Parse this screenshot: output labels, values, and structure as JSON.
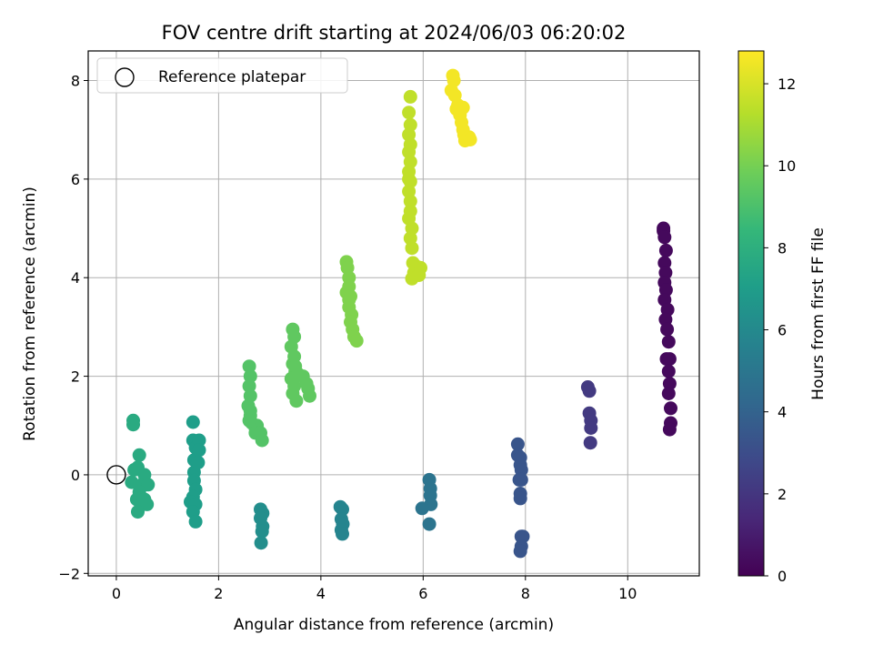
{
  "chart_data": {
    "type": "scatter",
    "title": "FOV centre drift starting at 2024/06/03 06:20:02",
    "xlabel": "Angular distance from reference (arcmin)",
    "ylabel": "Rotation from reference (arcmin)",
    "xlim": [
      -0.55,
      11.4
    ],
    "ylim": [
      -2.05,
      8.6
    ],
    "xticks": [
      0,
      2,
      4,
      6,
      8,
      10
    ],
    "yticks": [
      -2,
      0,
      2,
      4,
      6,
      8
    ],
    "grid": true,
    "legend": {
      "placement": "top-left",
      "entries": [
        "Reference platepar"
      ]
    },
    "reference_point": {
      "x": 0,
      "y": 0
    },
    "colorbar": {
      "label": "Hours from first FF file",
      "range": [
        0,
        12.8
      ],
      "ticks": [
        0,
        2,
        4,
        6,
        8,
        10,
        12
      ],
      "colormap": "viridis",
      "colors": [
        "#440154",
        "#482878",
        "#3e4989",
        "#31688e",
        "#26828e",
        "#1f9e89",
        "#35b779",
        "#6ece58",
        "#b5de2b",
        "#fde725"
      ]
    },
    "series": [
      {
        "hours": 0.3,
        "points": [
          [
            10.7,
            5.0
          ],
          [
            10.7,
            4.95
          ],
          [
            10.72,
            4.82
          ],
          [
            10.75,
            4.55
          ],
          [
            10.72,
            4.3
          ],
          [
            10.74,
            4.1
          ],
          [
            10.72,
            3.9
          ],
          [
            10.75,
            3.75
          ],
          [
            10.72,
            3.55
          ],
          [
            10.78,
            3.35
          ],
          [
            10.74,
            3.15
          ],
          [
            10.77,
            2.95
          ],
          [
            10.8,
            2.7
          ],
          [
            10.76,
            2.35
          ],
          [
            10.82,
            2.35
          ],
          [
            10.8,
            2.1
          ],
          [
            10.82,
            1.85
          ],
          [
            10.8,
            1.65
          ],
          [
            10.84,
            1.35
          ],
          [
            10.84,
            1.05
          ],
          [
            10.82,
            0.92
          ]
        ]
      },
      {
        "hours": 2.2,
        "points": [
          [
            9.22,
            1.78
          ],
          [
            9.25,
            1.7
          ],
          [
            9.25,
            1.25
          ],
          [
            9.28,
            1.1
          ],
          [
            9.28,
            0.95
          ],
          [
            9.27,
            0.65
          ]
        ]
      },
      {
        "hours": 3.4,
        "points": [
          [
            7.85,
            0.62
          ],
          [
            7.85,
            0.4
          ],
          [
            7.9,
            0.35
          ],
          [
            7.9,
            0.2
          ],
          [
            7.92,
            0.1
          ],
          [
            7.88,
            -0.1
          ],
          [
            7.92,
            -0.1
          ],
          [
            7.9,
            -0.38
          ],
          [
            7.9,
            -0.48
          ],
          [
            7.95,
            -1.25
          ],
          [
            7.92,
            -1.25
          ],
          [
            7.92,
            -1.45
          ],
          [
            7.9,
            -1.55
          ]
        ]
      },
      {
        "hours": 4.9,
        "points": [
          [
            6.12,
            -0.1
          ],
          [
            6.14,
            -0.28
          ],
          [
            6.14,
            -0.42
          ],
          [
            6.15,
            -0.6
          ],
          [
            5.98,
            -0.68
          ],
          [
            6.12,
            -1.0
          ]
        ]
      },
      {
        "hours": 5.8,
        "points": [
          [
            4.38,
            -0.65
          ],
          [
            4.42,
            -0.7
          ],
          [
            4.4,
            -0.9
          ],
          [
            4.43,
            -1.0
          ],
          [
            4.4,
            -1.12
          ],
          [
            4.42,
            -1.2
          ]
        ]
      },
      {
        "hours": 6.3,
        "points": [
          [
            2.82,
            -0.7
          ],
          [
            2.86,
            -0.78
          ],
          [
            2.82,
            -0.88
          ],
          [
            2.86,
            -1.05
          ],
          [
            2.85,
            -1.15
          ],
          [
            2.83,
            -1.38
          ]
        ]
      },
      {
        "hours": 7.1,
        "points": [
          [
            1.5,
            1.07
          ],
          [
            1.5,
            0.7
          ],
          [
            1.55,
            0.55
          ],
          [
            1.52,
            0.3
          ],
          [
            1.52,
            0.05
          ],
          [
            1.52,
            -0.12
          ],
          [
            1.55,
            -0.3
          ],
          [
            1.5,
            -0.45
          ],
          [
            1.45,
            -0.55
          ],
          [
            1.55,
            -0.6
          ],
          [
            1.5,
            -0.75
          ],
          [
            1.55,
            -0.95
          ],
          [
            1.62,
            0.7
          ],
          [
            1.62,
            0.5
          ],
          [
            1.6,
            0.25
          ]
        ]
      },
      {
        "hours": 7.8,
        "points": [
          [
            0.33,
            1.1
          ],
          [
            0.33,
            1.02
          ],
          [
            0.45,
            0.4
          ],
          [
            0.35,
            0.1
          ],
          [
            0.42,
            0.15
          ],
          [
            0.55,
            0.0
          ],
          [
            0.3,
            -0.15
          ],
          [
            0.5,
            -0.2
          ],
          [
            0.62,
            -0.2
          ],
          [
            0.45,
            -0.35
          ],
          [
            0.4,
            -0.5
          ],
          [
            0.55,
            -0.5
          ],
          [
            0.6,
            -0.6
          ],
          [
            0.48,
            -0.62
          ],
          [
            0.42,
            -0.75
          ]
        ]
      },
      {
        "hours": 9.3,
        "points": [
          [
            2.6,
            2.2
          ],
          [
            2.62,
            2.0
          ],
          [
            2.6,
            1.8
          ],
          [
            2.62,
            1.6
          ],
          [
            2.58,
            1.4
          ],
          [
            2.62,
            1.2
          ],
          [
            2.65,
            1.05
          ],
          [
            2.72,
            0.95
          ],
          [
            2.75,
            1.0
          ],
          [
            2.72,
            0.85
          ],
          [
            2.82,
            0.85
          ],
          [
            2.85,
            0.7
          ],
          [
            2.62,
            1.3
          ],
          [
            2.6,
            1.1
          ]
        ]
      },
      {
        "hours": 9.6,
        "points": [
          [
            3.45,
            2.95
          ],
          [
            3.48,
            2.8
          ],
          [
            3.42,
            2.6
          ],
          [
            3.48,
            2.4
          ],
          [
            3.45,
            2.25
          ],
          [
            3.5,
            2.1
          ],
          [
            3.42,
            1.95
          ],
          [
            3.48,
            1.8
          ],
          [
            3.45,
            1.65
          ],
          [
            3.52,
            1.5
          ],
          [
            3.65,
            2.0
          ],
          [
            3.72,
            1.85
          ],
          [
            3.75,
            1.75
          ],
          [
            3.78,
            1.6
          ],
          [
            3.5,
            2.2
          ],
          [
            3.55,
            2.05
          ]
        ]
      },
      {
        "hours": 10.3,
        "points": [
          [
            4.5,
            4.32
          ],
          [
            4.52,
            4.2
          ],
          [
            4.55,
            4.0
          ],
          [
            4.55,
            3.82
          ],
          [
            4.5,
            3.7
          ],
          [
            4.58,
            3.62
          ],
          [
            4.55,
            3.4
          ],
          [
            4.6,
            3.25
          ],
          [
            4.58,
            3.1
          ],
          [
            4.62,
            2.95
          ],
          [
            4.65,
            2.8
          ],
          [
            4.7,
            2.72
          ],
          [
            4.55,
            3.55
          ]
        ]
      },
      {
        "hours": 11.6,
        "points": [
          [
            5.75,
            7.67
          ],
          [
            5.72,
            7.35
          ],
          [
            5.75,
            7.1
          ],
          [
            5.72,
            6.9
          ],
          [
            5.75,
            6.7
          ],
          [
            5.72,
            6.55
          ],
          [
            5.75,
            6.35
          ],
          [
            5.72,
            6.15
          ],
          [
            5.75,
            5.95
          ],
          [
            5.72,
            5.75
          ],
          [
            5.75,
            5.55
          ],
          [
            5.75,
            5.35
          ],
          [
            5.72,
            5.2
          ],
          [
            5.78,
            5.0
          ],
          [
            5.75,
            4.8
          ],
          [
            5.78,
            4.6
          ],
          [
            5.8,
            4.3
          ],
          [
            5.82,
            4.1
          ],
          [
            5.78,
            3.98
          ],
          [
            5.88,
            4.22
          ],
          [
            5.95,
            4.2
          ],
          [
            5.92,
            4.05
          ],
          [
            5.72,
            6.0
          ]
        ]
      },
      {
        "hours": 12.6,
        "points": [
          [
            6.58,
            8.1
          ],
          [
            6.6,
            8.0
          ],
          [
            6.55,
            7.8
          ],
          [
            6.62,
            7.7
          ],
          [
            6.68,
            7.5
          ],
          [
            6.65,
            7.42
          ],
          [
            6.78,
            7.45
          ],
          [
            6.72,
            7.3
          ],
          [
            6.75,
            7.15
          ],
          [
            6.78,
            7.0
          ],
          [
            6.8,
            6.9
          ],
          [
            6.82,
            6.78
          ],
          [
            6.9,
            6.85
          ],
          [
            6.92,
            6.8
          ]
        ]
      }
    ]
  }
}
